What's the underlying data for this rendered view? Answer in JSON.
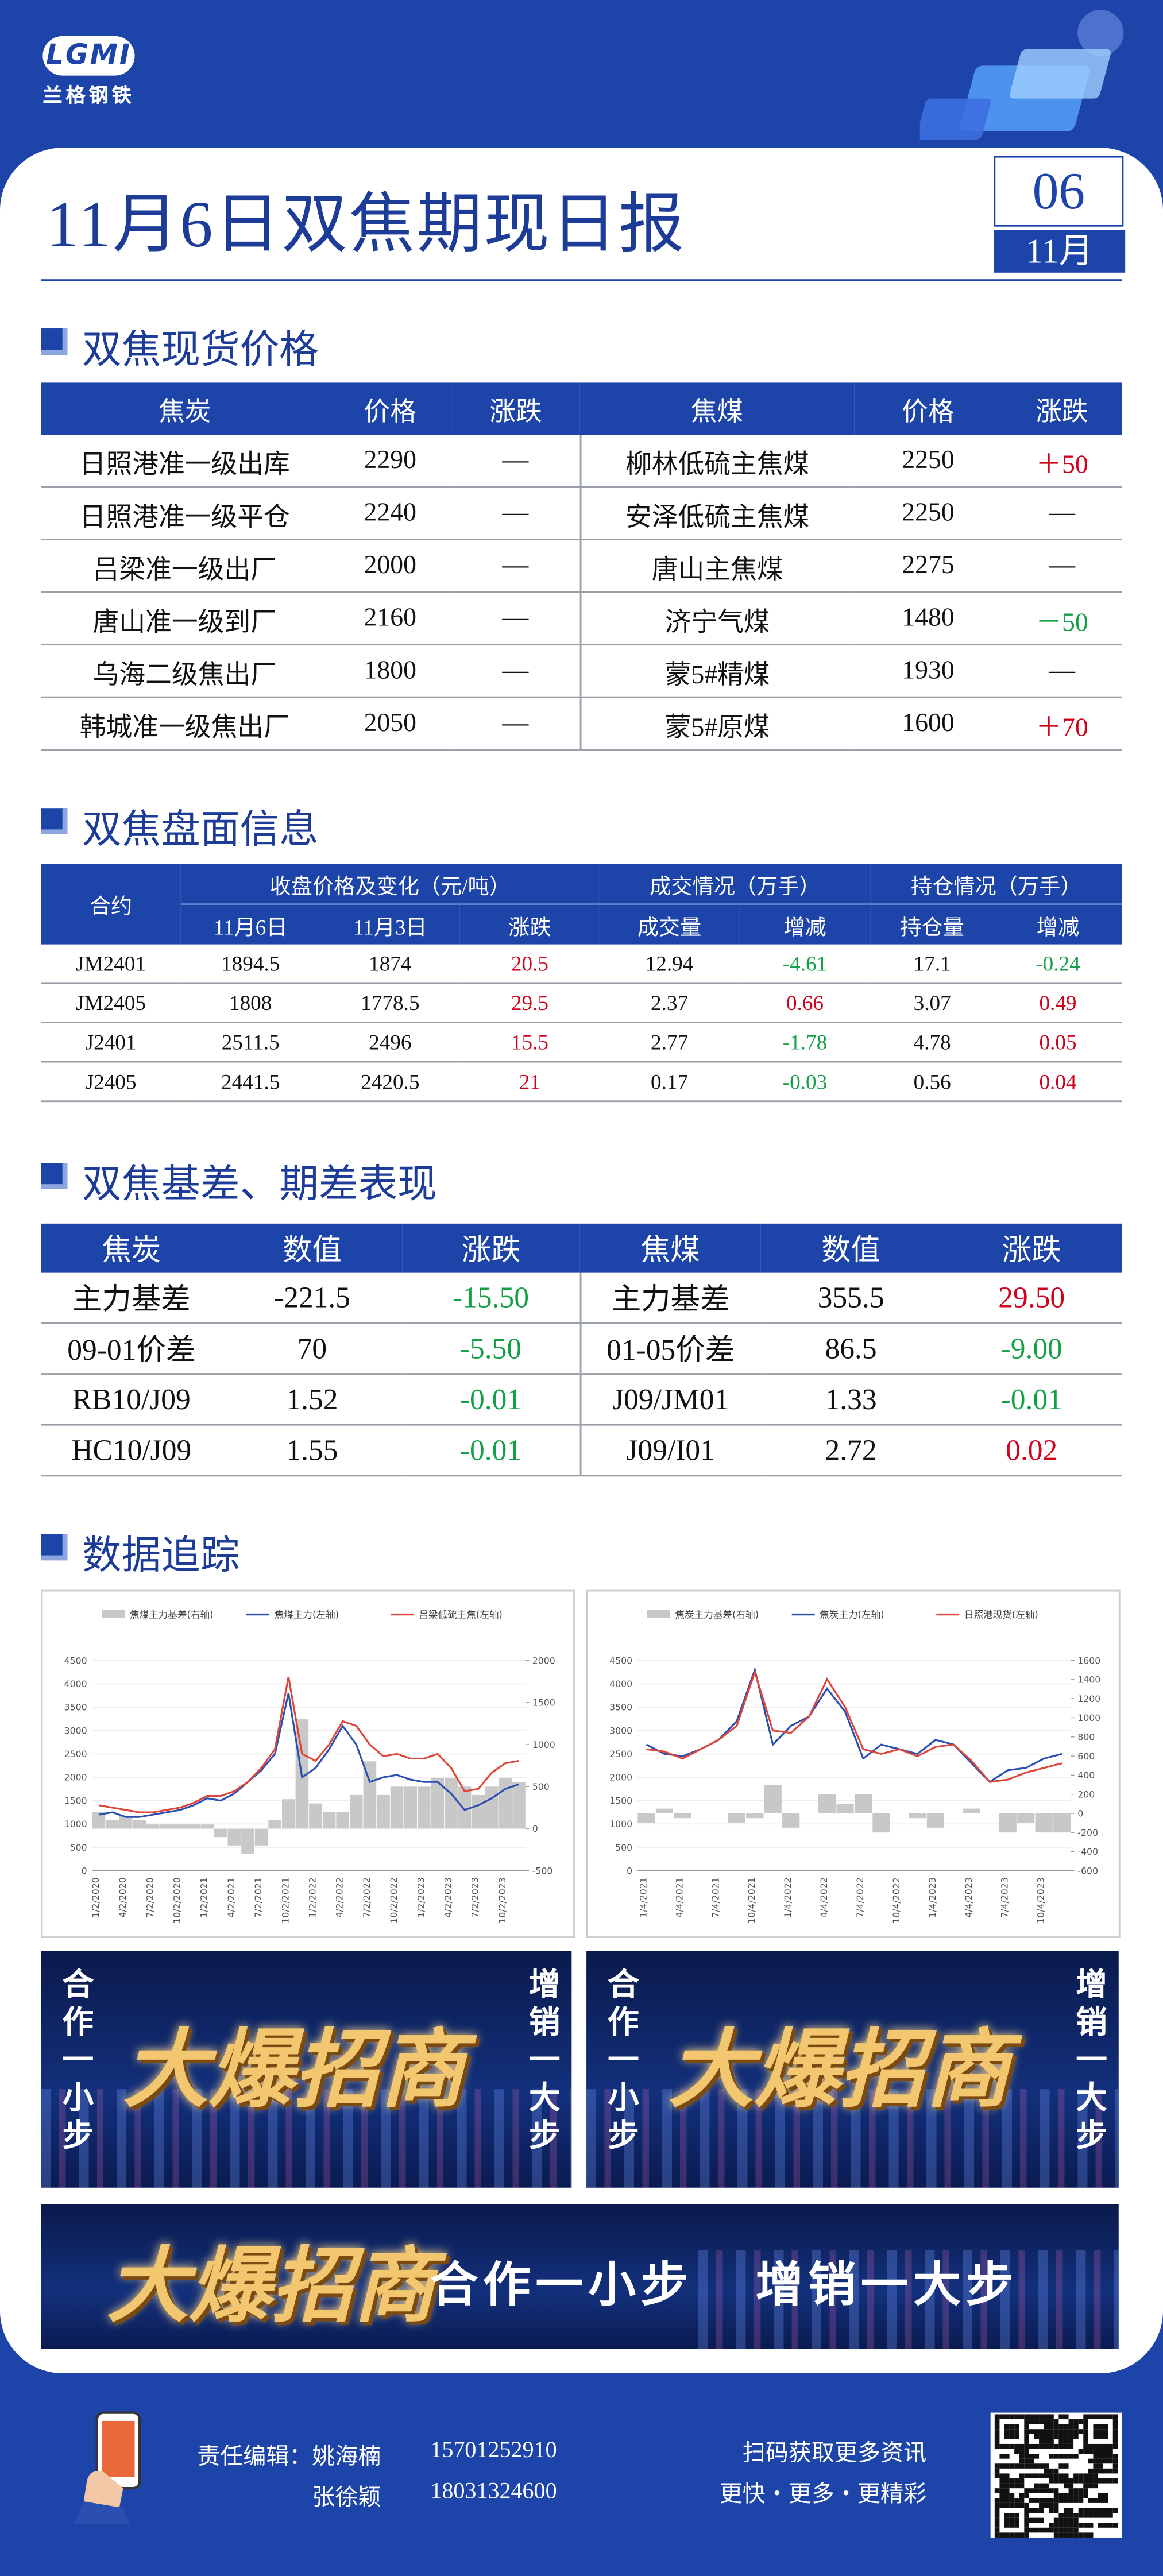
{
  "header": {
    "logo": "LGMI",
    "brand": "兰格钢铁",
    "title": "11月6日双焦期现日报",
    "day": "06",
    "month": "11月"
  },
  "spot_prices": {
    "title": "双焦现货价格",
    "columns": [
      "焦炭",
      "价格",
      "涨跌",
      "焦煤",
      "价格",
      "涨跌"
    ],
    "rows": [
      [
        "日照港准一级出库",
        "2290",
        "—",
        "柳林低硫主焦煤",
        "2250",
        "＋50"
      ],
      [
        "日照港准一级平仓",
        "2240",
        "—",
        "安泽低硫主焦煤",
        "2250",
        "—"
      ],
      [
        "吕梁准一级出厂",
        "2000",
        "—",
        "唐山主焦煤",
        "2275",
        "—"
      ],
      [
        "唐山准一级到厂",
        "2160",
        "—",
        "济宁气煤",
        "1480",
        "－50"
      ],
      [
        "乌海二级焦出厂",
        "1800",
        "—",
        "蒙5#精煤",
        "1930",
        "—"
      ],
      [
        "韩城准一级焦出厂",
        "2050",
        "—",
        "蒙5#原煤",
        "1600",
        "＋70"
      ]
    ]
  },
  "futures_info": {
    "title": "双焦盘面信息",
    "group_headers": [
      "合约",
      "收盘价格及变化（元/吨）",
      "成交情况（万手）",
      "持仓情况（万手）"
    ],
    "sub_headers": [
      "11月6日",
      "11月3日",
      "涨跌",
      "成交量",
      "增减",
      "持仓量",
      "增减"
    ],
    "rows": [
      [
        "JM2401",
        "1894.5",
        "1874",
        "20.5",
        "12.94",
        "-4.61",
        "17.1",
        "-0.24"
      ],
      [
        "JM2405",
        "1808",
        "1778.5",
        "29.5",
        "2.37",
        "0.66",
        "3.07",
        "0.49"
      ],
      [
        "J2401",
        "2511.5",
        "2496",
        "15.5",
        "2.77",
        "-1.78",
        "4.78",
        "0.05"
      ],
      [
        "J2405",
        "2441.5",
        "2420.5",
        "21",
        "0.17",
        "-0.03",
        "0.56",
        "0.04"
      ]
    ]
  },
  "basis": {
    "title": "双焦基差、期差表现",
    "columns": [
      "焦炭",
      "数值",
      "涨跌",
      "焦煤",
      "数值",
      "涨跌"
    ],
    "rows": [
      [
        "主力基差",
        "-221.5",
        "-15.50",
        "主力基差",
        "355.5",
        "29.50"
      ],
      [
        "09-01价差",
        "70",
        "-5.50",
        "01-05价差",
        "86.5",
        "-9.00"
      ],
      [
        "RB10/J09",
        "1.52",
        "-0.01",
        "J09/JM01",
        "1.33",
        "-0.01"
      ],
      [
        "HC10/J09",
        "1.55",
        "-0.01",
        "J09/I01",
        "2.72",
        "0.02"
      ]
    ]
  },
  "tracking": {
    "title": "数据追踪"
  },
  "chart_data": [
    {
      "type": "line",
      "grid": true,
      "legend_position": "top",
      "categories": [
        "1/2/2020",
        null,
        "4/2/2020",
        null,
        "7/2/2020",
        null,
        "10/2/2020",
        null,
        "1/2/2021",
        null,
        "4/2/2021",
        null,
        "7/2/2021",
        null,
        "10/2/2021",
        null,
        "1/2/2022",
        null,
        "4/2/2022",
        null,
        "7/2/2022",
        null,
        "10/2/2022",
        null,
        "1/2/2023",
        null,
        "4/2/2023",
        null,
        "7/2/2023",
        null,
        "10/2/2023",
        null
      ],
      "ylim": [
        0,
        4500
      ],
      "yticks": [
        0,
        500,
        1000,
        1500,
        2000,
        2500,
        3000,
        3500,
        4000,
        4500
      ],
      "y2lim": [
        -500,
        2000
      ],
      "y2ticks": [
        -500,
        0,
        500,
        1000,
        1500,
        2000
      ],
      "series": [
        {
          "name": "焦煤主力基差(右轴)",
          "type": "bar",
          "axis": "y2",
          "color": "#c8c8c8",
          "values": [
            200,
            100,
            150,
            100,
            50,
            50,
            50,
            50,
            50,
            -100,
            -200,
            -300,
            -200,
            100,
            350,
            1300,
            300,
            200,
            200,
            400,
            800,
            400,
            500,
            500,
            500,
            600,
            600,
            500,
            400,
            500,
            600,
            550
          ]
        },
        {
          "name": "焦煤主力(左轴)",
          "type": "line",
          "color": "#2a4fb0",
          "values": [
            1200,
            1250,
            1150,
            1150,
            1200,
            1250,
            1300,
            1400,
            1550,
            1500,
            1650,
            1900,
            2150,
            2500,
            3800,
            2000,
            2200,
            2600,
            3100,
            2700,
            1900,
            2000,
            2050,
            1950,
            1900,
            1900,
            1650,
            1300,
            1400,
            1550,
            1750,
            1850
          ]
        },
        {
          "name": "吕梁低硫主焦(左轴)",
          "type": "line",
          "color": "#e0453a",
          "values": [
            1400,
            1350,
            1300,
            1250,
            1250,
            1300,
            1350,
            1450,
            1600,
            1600,
            1700,
            1900,
            2200,
            2600,
            4150,
            2500,
            2350,
            2700,
            3200,
            3100,
            2700,
            2450,
            2500,
            2400,
            2400,
            2500,
            2200,
            1700,
            1750,
            2100,
            2300,
            2350
          ]
        }
      ]
    },
    {
      "type": "line",
      "grid": true,
      "legend_position": "top",
      "categories": [
        "1/4/2021",
        null,
        "4/4/2021",
        null,
        "7/4/2021",
        null,
        "10/4/2021",
        null,
        "1/4/2022",
        null,
        "4/4/2022",
        null,
        "7/4/2022",
        null,
        "10/4/2022",
        null,
        "1/4/2023",
        null,
        "4/4/2023",
        null,
        "7/4/2023",
        null,
        "10/4/2023",
        null
      ],
      "ylim": [
        0,
        4500
      ],
      "yticks": [
        0,
        500,
        1000,
        1500,
        2000,
        2500,
        3000,
        3500,
        4000,
        4500
      ],
      "y2lim": [
        -600,
        1600
      ],
      "y2ticks": [
        -600,
        -400,
        -200,
        0,
        200,
        400,
        600,
        800,
        1000,
        1200,
        1400,
        1600
      ],
      "series": [
        {
          "name": "焦炭主力基差(右轴)",
          "type": "bar",
          "axis": "y2",
          "color": "#c8c8c8",
          "values": [
            -100,
            50,
            -50,
            0,
            0,
            -100,
            -50,
            300,
            -150,
            0,
            200,
            100,
            200,
            -200,
            0,
            -50,
            -150,
            0,
            50,
            0,
            -200,
            -100,
            -200,
            -200
          ]
        },
        {
          "name": "焦炭主力(左轴)",
          "type": "line",
          "color": "#2a4fb0",
          "values": [
            2700,
            2500,
            2450,
            2600,
            2800,
            3200,
            4300,
            2700,
            3100,
            3300,
            3900,
            3400,
            2400,
            2700,
            2600,
            2500,
            2800,
            2700,
            2300,
            1900,
            2150,
            2200,
            2400,
            2500
          ]
        },
        {
          "name": "日照港现货(左轴)",
          "type": "line",
          "color": "#e0453a",
          "values": [
            2600,
            2550,
            2400,
            2600,
            2800,
            3100,
            4250,
            3000,
            2950,
            3300,
            4100,
            3500,
            2600,
            2500,
            2600,
            2450,
            2650,
            2700,
            2350,
            1900,
            1950,
            2100,
            2200,
            2300
          ]
        }
      ]
    }
  ],
  "banners": {
    "left": {
      "side_left": "合作一小步",
      "title": "大爆招商",
      "side_right": "增销一大步"
    },
    "right": {
      "side_left": "合作一小步",
      "title": "大爆招商",
      "side_right": "增销一大步"
    },
    "wide": {
      "title": "大爆招商",
      "slogan_left": "合作一小步",
      "slogan_right": "增销一大步"
    }
  },
  "footer": {
    "editor_label": "责任编辑：",
    "editors": [
      {
        "name": "姚海楠",
        "phone": "15701252910"
      },
      {
        "name": "张徐颖",
        "phone": "18031324600"
      }
    ],
    "qr_caption": "扫码获取更多资讯",
    "tagline": "更快・更多・更精彩"
  }
}
